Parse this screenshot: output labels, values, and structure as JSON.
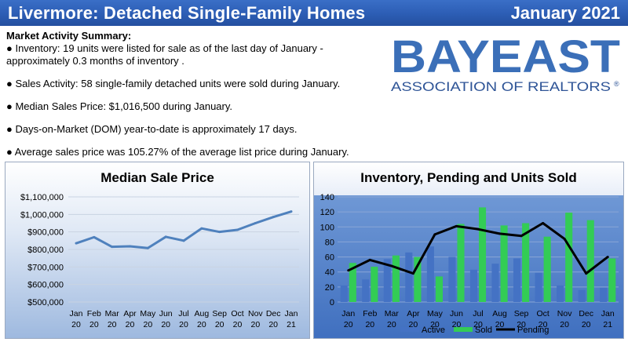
{
  "header": {
    "title": "Livermore: Detached Single-Family Homes",
    "date": "January 2021"
  },
  "summary": {
    "title": "Market Activity Summary:",
    "bullets": [
      "● Inventory: 19 units were listed for sale as of the last day of January - approximately 0.3 months of inventory .",
      "● Sales Activity: 58 single-family detached units were sold during January.",
      "● Median Sales Price: $1,016,500 during January.",
      "● Days-on-Market (DOM) year-to-date is approximately 17 days.",
      "● Average sales price was 105.27% of the average list price during January."
    ]
  },
  "logo": {
    "main": "BAYEAST",
    "sub": "ASSOCIATION OF REALTORS",
    "mark": "®"
  },
  "chart_data": [
    {
      "type": "line",
      "title": "Median Sale Price",
      "categories": [
        [
          "Jan",
          "20"
        ],
        [
          "Feb",
          "20"
        ],
        [
          "Mar",
          "20"
        ],
        [
          "Apr",
          "20"
        ],
        [
          "May",
          "20"
        ],
        [
          "Jun",
          "20"
        ],
        [
          "Jul",
          "20"
        ],
        [
          "Aug",
          "20"
        ],
        [
          "Sep",
          "20"
        ],
        [
          "Oct",
          "20"
        ],
        [
          "Nov",
          "20"
        ],
        [
          "Dec",
          "20"
        ],
        [
          "Jan",
          "21"
        ]
      ],
      "series": [
        {
          "values": [
            835000,
            870000,
            815000,
            818000,
            808000,
            872000,
            850000,
            920000,
            900000,
            912000,
            950000,
            985000,
            1016500
          ]
        }
      ],
      "ylim": [
        500000,
        1100000
      ],
      "yticks": [
        500000,
        600000,
        700000,
        800000,
        900000,
        1000000,
        1100000
      ],
      "ytick_labels": [
        "$500,000",
        "$600,000",
        "$700,000",
        "$800,000",
        "$900,000",
        "$1,000,000",
        "$1,100,000"
      ],
      "grid": true,
      "colors": {
        "line": "#4f81bd"
      }
    },
    {
      "type": "bar",
      "title": "Inventory, Pending and Units Sold",
      "categories": [
        [
          "Jan",
          "20"
        ],
        [
          "Feb",
          "20"
        ],
        [
          "Mar",
          "20"
        ],
        [
          "Apr",
          "20"
        ],
        [
          "May",
          "20"
        ],
        [
          "Jun",
          "20"
        ],
        [
          "Jul",
          "20"
        ],
        [
          "Aug",
          "20"
        ],
        [
          "Sep",
          "20"
        ],
        [
          "Oct",
          "20"
        ],
        [
          "Nov",
          "20"
        ],
        [
          "Dec",
          "20"
        ],
        [
          "Jan",
          "21"
        ]
      ],
      "series": [
        {
          "name": "Active",
          "type": "bar",
          "values": [
            22,
            30,
            57,
            66,
            74,
            60,
            43,
            51,
            58,
            39,
            22,
            16,
            19
          ],
          "color": "#4472c4"
        },
        {
          "name": "Sold",
          "type": "bar",
          "values": [
            52,
            47,
            62,
            60,
            34,
            104,
            126,
            102,
            105,
            87,
            119,
            109,
            58
          ],
          "color": "#33cc55"
        },
        {
          "name": "Pending",
          "type": "line",
          "values": [
            42,
            56,
            48,
            38,
            90,
            101,
            97,
            91,
            88,
            105,
            84,
            38,
            60
          ],
          "color": "#000000"
        }
      ],
      "ylim": [
        0,
        140
      ],
      "yticks": [
        0,
        20,
        40,
        60,
        80,
        100,
        120,
        140
      ],
      "legend": "bottom",
      "grid": true
    }
  ]
}
